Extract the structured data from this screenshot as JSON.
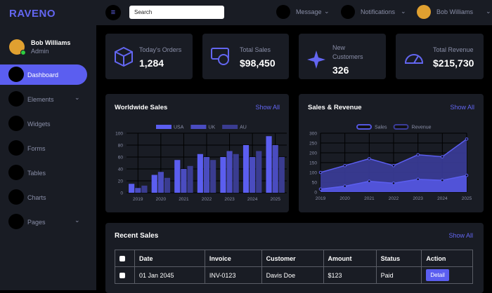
{
  "brand": "RAVENO",
  "user": {
    "name": "Bob Williams",
    "role": "Admin"
  },
  "nav": [
    "Dashboard",
    "Elements",
    "Widgets",
    "Forms",
    "Tables",
    "Charts",
    "Pages"
  ],
  "header": {
    "search_placeholder": "Search",
    "message": "Message",
    "notifications": "Notifications",
    "user_name": "Bob Williams"
  },
  "stats": [
    {
      "label": "Today's Orders",
      "value": "1,284"
    },
    {
      "label": "Total Sales",
      "value": "$98,450"
    },
    {
      "label": "New Customers",
      "value": "326"
    },
    {
      "label": "Total Revenue",
      "value": "$215,730"
    }
  ],
  "chart_data": [
    {
      "type": "bar",
      "title": "Worldwide Sales",
      "link_text": "Show All",
      "categories": [
        "2019",
        "2020",
        "2021",
        "2022",
        "2023",
        "2024",
        "2025"
      ],
      "series": [
        {
          "name": "USA",
          "color": "#5b5ef0",
          "values": [
            15,
            30,
            55,
            65,
            60,
            80,
            95
          ]
        },
        {
          "name": "UK",
          "color": "#4a4cc0",
          "values": [
            8,
            35,
            40,
            60,
            70,
            60,
            80
          ]
        },
        {
          "name": "AU",
          "color": "#3a3c90",
          "values": [
            12,
            25,
            45,
            55,
            65,
            70,
            60
          ]
        }
      ],
      "ylim": [
        0,
        100
      ],
      "yticks": [
        0,
        20,
        40,
        60,
        80,
        100
      ],
      "grid": true
    },
    {
      "type": "area",
      "title": "Sales & Revenue",
      "link_text": "Show All",
      "categories": [
        "2019",
        "2020",
        "2021",
        "2022",
        "2023",
        "2024",
        "2025"
      ],
      "series": [
        {
          "name": "Sales",
          "color": "#5457e0",
          "values": [
            15,
            30,
            55,
            45,
            65,
            60,
            85
          ]
        },
        {
          "name": "Revenue",
          "color": "#3b3d9a",
          "values": [
            100,
            135,
            170,
            135,
            190,
            180,
            270
          ]
        }
      ],
      "ylim": [
        0,
        300
      ],
      "yticks": [
        0,
        50,
        100,
        150,
        200,
        250,
        300
      ],
      "grid": true
    }
  ],
  "recent_sales": {
    "title": "Recent Sales",
    "link_text": "Show All",
    "columns": [
      "Date",
      "Invoice",
      "Customer",
      "Amount",
      "Status",
      "Action"
    ],
    "rows": [
      [
        "01 Jan 2045",
        "INV-0123",
        "Davis Doe",
        "$123",
        "Paid",
        "Detail"
      ]
    ]
  }
}
